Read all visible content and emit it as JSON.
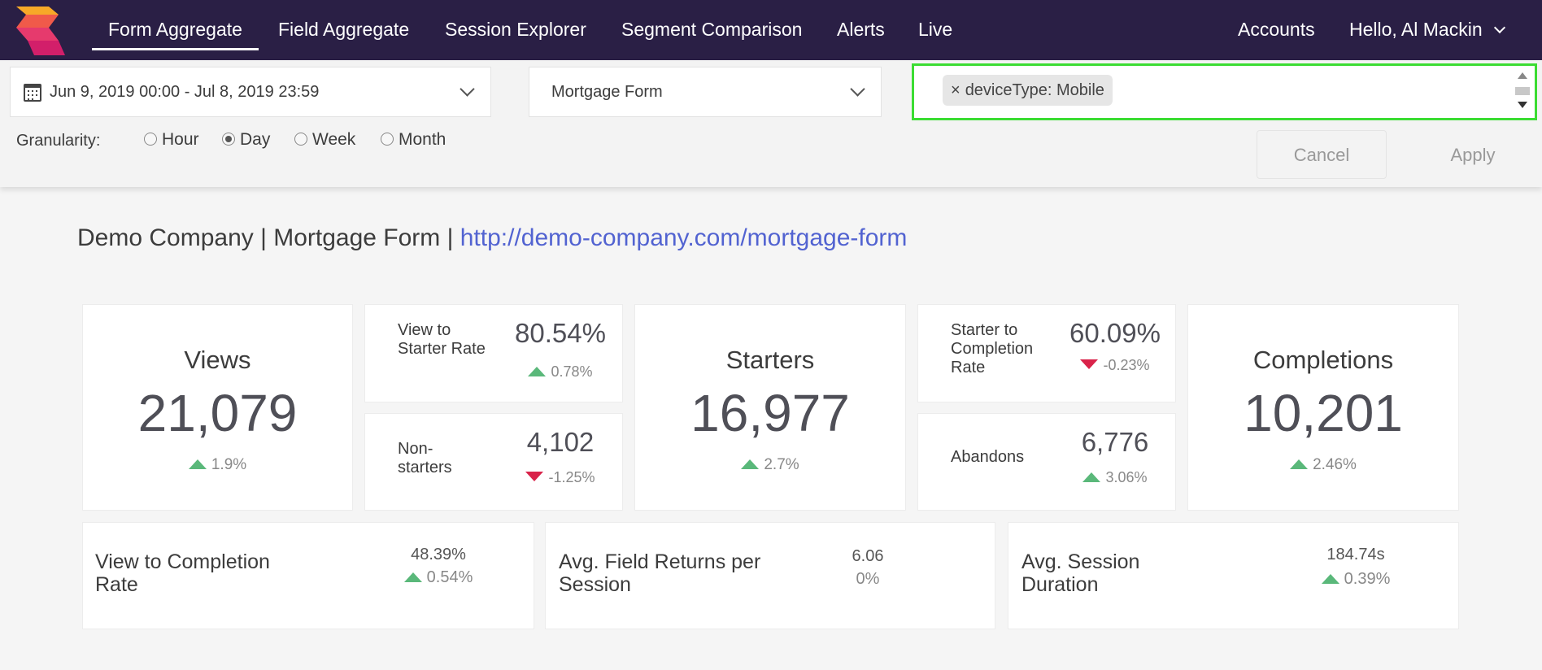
{
  "nav": {
    "items": [
      {
        "label": "Form Aggregate",
        "active": true
      },
      {
        "label": "Field Aggregate"
      },
      {
        "label": "Session Explorer"
      },
      {
        "label": "Segment Comparison"
      },
      {
        "label": "Alerts"
      },
      {
        "label": "Live"
      }
    ],
    "accounts": "Accounts",
    "user": "Hello, Al Mackin"
  },
  "filters": {
    "date_range": "Jun 9, 2019 00:00 - Jul 8, 2019 23:59",
    "form": "Mortgage Form",
    "segment_chip": "deviceType: Mobile",
    "chip_remove": "×",
    "granularity_label": "Granularity:",
    "granularity_options": [
      "Hour",
      "Day",
      "Week",
      "Month"
    ],
    "granularity_selected": "Day",
    "cancel": "Cancel",
    "apply": "Apply"
  },
  "title": {
    "prefix": "Demo Company | Mortgage Form | ",
    "url": "http://demo-company.com/mortgage-form"
  },
  "metrics": {
    "views": {
      "label": "Views",
      "value": "21,079",
      "delta": "1.9%",
      "trend": "up"
    },
    "view_to_starter": {
      "label": "View to Starter Rate",
      "value": "80.54%",
      "delta": "0.78%",
      "trend": "up"
    },
    "non_starters": {
      "label": "Non-starters",
      "value": "4,102",
      "delta": "-1.25%",
      "trend": "down"
    },
    "starters": {
      "label": "Starters",
      "value": "16,977",
      "delta": "2.7%",
      "trend": "up"
    },
    "starter_to_completion": {
      "label": "Starter to Completion Rate",
      "value": "60.09%",
      "delta": "-0.23%",
      "trend": "down"
    },
    "abandons": {
      "label": "Abandons",
      "value": "6,776",
      "delta": "3.06%",
      "trend": "up"
    },
    "completions": {
      "label": "Completions",
      "value": "10,201",
      "delta": "2.46%",
      "trend": "up"
    },
    "view_to_completion": {
      "label": "View to Completion Rate",
      "value": "48.39%",
      "delta": "0.54%",
      "trend": "up"
    },
    "avg_field_returns": {
      "label": "Avg. Field Returns per Session",
      "value": "6.06",
      "delta": "0%",
      "trend": "none"
    },
    "avg_session_duration": {
      "label": "Avg. Session Duration",
      "value": "184.74s",
      "delta": "0.39%",
      "trend": "up"
    }
  },
  "colors": {
    "nav_bg": "#2a1f45",
    "highlight_border": "#3bdc32",
    "link": "#5263d1",
    "trend_up": "#5ab87a",
    "trend_down": "#d9234a"
  }
}
